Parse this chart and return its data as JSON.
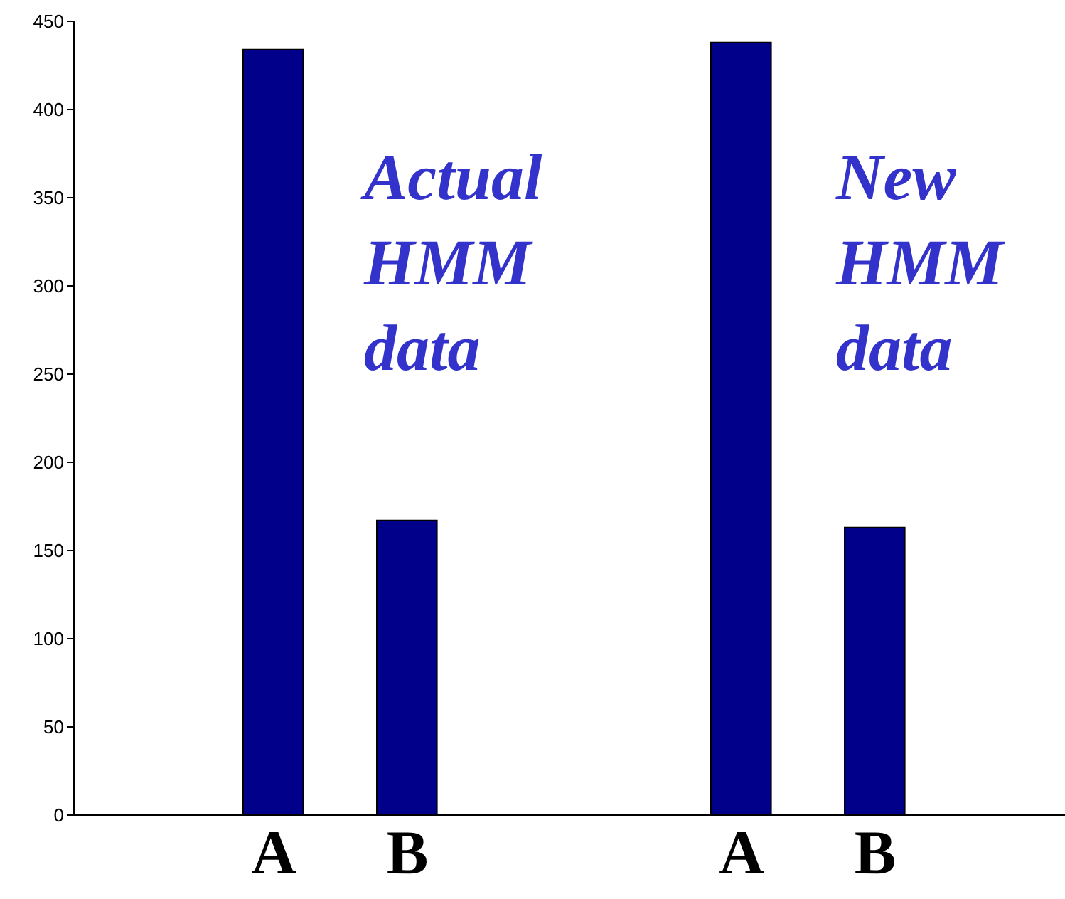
{
  "chart_data": {
    "type": "bar",
    "categories": [
      null,
      null,
      "A",
      null,
      "B",
      null,
      null,
      null,
      null,
      "A",
      null,
      "B",
      null,
      null
    ],
    "values": [
      null,
      null,
      434,
      null,
      167,
      null,
      null,
      null,
      null,
      438,
      null,
      163,
      null,
      null
    ],
    "color": "#00008b",
    "ylim": [
      0,
      450
    ],
    "yticks": [
      0,
      50,
      100,
      150,
      200,
      250,
      300,
      350,
      400,
      450
    ],
    "annotations": [
      "Actual HMM data",
      "New HMM data"
    ]
  }
}
